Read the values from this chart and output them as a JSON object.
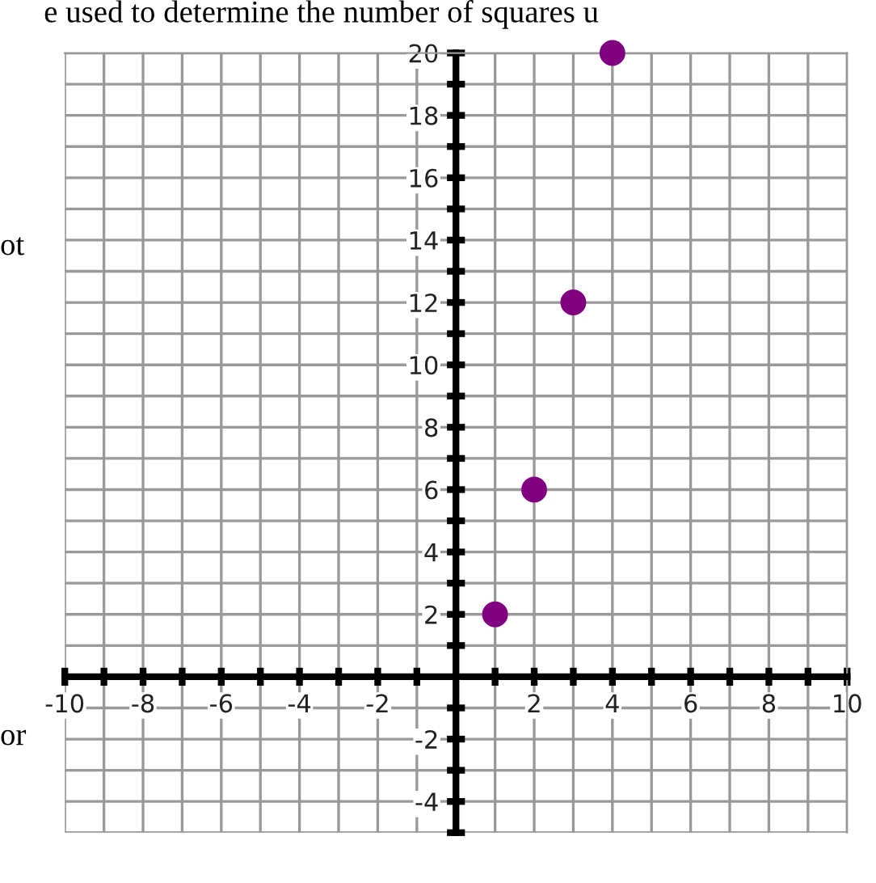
{
  "chart_data": {
    "type": "scatter",
    "x": [
      1,
      2,
      3,
      4
    ],
    "series": [
      {
        "color": "#800080",
        "values": [
          2,
          6,
          12,
          20
        ]
      }
    ],
    "xlim": [
      -10,
      10
    ],
    "ylim": [
      -5,
      20
    ],
    "xticks": [
      -10,
      {
        "value": -9,
        "label": null
      },
      -8,
      {
        "value": -7,
        "label": null
      },
      -6,
      {
        "value": -5,
        "label": null
      },
      -4,
      {
        "value": -3,
        "label": null
      },
      -2,
      {
        "value": -1,
        "label": null
      },
      {
        "value": 1,
        "label": null
      },
      2,
      {
        "value": 3,
        "label": null
      },
      4,
      {
        "value": 5,
        "label": null
      },
      6,
      {
        "value": 7,
        "label": null
      },
      8,
      {
        "value": 9,
        "label": null
      },
      10
    ],
    "yticks": [
      {
        "value": -5,
        "label": null
      },
      -4,
      {
        "value": -3,
        "label": null
      },
      -2,
      {
        "value": -1,
        "label": null
      },
      {
        "value": 1,
        "label": null
      },
      2,
      {
        "value": 3,
        "label": null
      },
      4,
      {
        "value": 5,
        "label": null
      },
      6,
      {
        "value": 7,
        "label": null
      },
      8,
      {
        "value": 9,
        "label": null
      },
      10,
      {
        "value": 11,
        "label": null
      },
      12,
      {
        "value": 13,
        "label": null
      },
      14,
      {
        "value": 15,
        "label": null
      },
      16,
      {
        "value": 17,
        "label": null
      },
      18,
      {
        "value": 19,
        "label": null
      },
      20
    ],
    "grid": true,
    "marker": "circle",
    "annotations": [
      "e used to determine the number of squares u",
      "ot",
      "or"
    ]
  }
}
